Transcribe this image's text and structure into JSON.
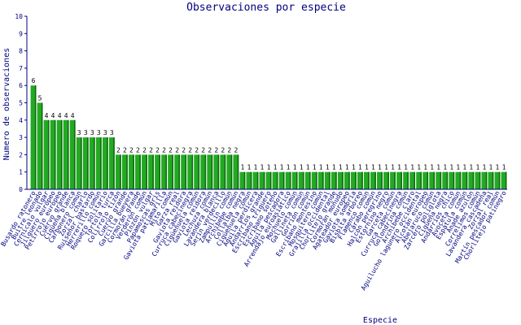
{
  "chart_data": {
    "type": "bar",
    "title": "Observaciones por especie",
    "xlabel": "Especie",
    "ylabel": "Numero de observaciones",
    "ylim": [
      0,
      10
    ],
    "yticks": [
      0,
      1,
      2,
      3,
      4,
      5,
      6,
      7,
      8,
      9,
      10
    ],
    "grid": false,
    "bar_color": "#22aa22",
    "text_color": "#000080",
    "categories": [
      "Busardo ratonero",
      "Buitre leonado",
      "Cernícalo vulgar",
      "Jilguero europeo",
      "Petirrojo europeo",
      "Cuervo grande",
      "Cigüeña blanca",
      "Carbonero común",
      "Zorzal charlo",
      "Ruiseñor bastardo",
      "Herrerillo común",
      "Roquero solitario",
      "Tórtola turca",
      "Colirrojo tizón",
      "Cuervo grande",
      "Garcilla bueyera",
      "Cormorán grande",
      "Verderón común",
      "Pinzón vulgar",
      "Papamoscas gris",
      "Gaviota patiamarilla",
      "Mito común",
      "Garza real",
      "Gaviota reidora",
      "Curruca cabecinegra",
      "Cigüeñuela común",
      "Gaviota reidora",
      "Lechuza común",
      "Lavandera blanca",
      "Serín verdecillo",
      "Zampullín común",
      "Archibebe común",
      "Collalba negra",
      "Cigüeñuela común",
      "Águila perdicera",
      "Andarríos grande",
      "Escribano triguero",
      "Escribano soteño",
      "Águila pescadora",
      "Arrendajo euroasiático",
      "Mochuelo común",
      "Gallineta común",
      "Gorrión común",
      "Escribano montesino",
      "Mosquitero común",
      "Grajilla occidental",
      "Chorlitejo grande",
      "Cormorán moñudo",
      "Agateador europeo",
      "Gaviota sombría",
      "Bisbita arbóreo",
      "Flamenco común",
      "Cárabo común",
      "Halcón peregrino",
      "Estornino negro",
      "Garceta común",
      "Curruca cabecinegra",
      "Golondrina común",
      "Archibebe claro",
      "Aguilucho lagunero occidental",
      "Alcotán europeo",
      "Abejaruco común",
      "Zarcero políglota",
      "Cigüeña negra",
      "Andarríos chico",
      "Avoceta común",
      "Espátula común",
      "Ánade azulón",
      "Correlimos común",
      "Lavandera cascadeña",
      "Zorzal real",
      "Martín pescador común",
      "Chorlitejo patinegro"
    ],
    "values": [
      6,
      5,
      4,
      4,
      4,
      4,
      4,
      3,
      3,
      3,
      3,
      3,
      3,
      2,
      2,
      2,
      2,
      2,
      2,
      2,
      2,
      2,
      2,
      2,
      2,
      2,
      2,
      2,
      2,
      2,
      2,
      2,
      1,
      1,
      1,
      1,
      1,
      1,
      1,
      1,
      1,
      1,
      1,
      1,
      1,
      1,
      1,
      1,
      1,
      1,
      1,
      1,
      1,
      1,
      1,
      1,
      1,
      1,
      1,
      1,
      1,
      1,
      1,
      1,
      1,
      1,
      1,
      1,
      1,
      1,
      1,
      1,
      1
    ]
  }
}
